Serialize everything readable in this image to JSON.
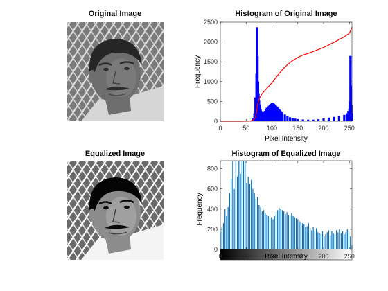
{
  "figure": {
    "panels": [
      {
        "title": "Original Image"
      },
      {
        "title": "Histogram of Original Image"
      },
      {
        "title": "Equalized Image"
      },
      {
        "title": "Histogram of Equalized Image"
      }
    ]
  },
  "chart_data": [
    {
      "type": "image",
      "title": "Original Image",
      "tone": "grayscale, low contrast (mid-gray dominated)"
    },
    {
      "type": "bar",
      "title": "Histogram of Original Image",
      "xlabel": "Pixel Intensity",
      "ylabel": "Frequency",
      "xlim": [
        0,
        255
      ],
      "ylim": [
        0,
        2500
      ],
      "xticks": [
        0,
        50,
        100,
        150,
        200,
        250
      ],
      "yticks": [
        0,
        500,
        1000,
        1500,
        2000,
        2500
      ],
      "grid": false,
      "colors": {
        "bars": "#0000ff",
        "cdf": "#ff0000"
      },
      "series": [
        {
          "kind": "histogram",
          "x": [
            50,
            55,
            60,
            62,
            64,
            66,
            68,
            70,
            71,
            72,
            73,
            74,
            75,
            76,
            77,
            78,
            79,
            80,
            82,
            84,
            86,
            88,
            90,
            92,
            94,
            96,
            98,
            100,
            102,
            104,
            106,
            108,
            110,
            112,
            114,
            116,
            118,
            120,
            125,
            130,
            135,
            140,
            145,
            150,
            160,
            170,
            180,
            190,
            200,
            210,
            220,
            230,
            240,
            245,
            248,
            250,
            251,
            252,
            253,
            254,
            255
          ],
          "values": [
            0,
            2,
            10,
            30,
            80,
            200,
            600,
            1200,
            2370,
            1650,
            1000,
            700,
            520,
            420,
            350,
            300,
            260,
            240,
            220,
            230,
            260,
            300,
            340,
            360,
            390,
            420,
            440,
            460,
            470,
            440,
            410,
            390,
            370,
            340,
            310,
            280,
            250,
            220,
            170,
            130,
            100,
            80,
            65,
            55,
            45,
            40,
            40,
            50,
            70,
            90,
            110,
            130,
            160,
            200,
            260,
            320,
            500,
            1650,
            900,
            400,
            200
          ]
        },
        {
          "kind": "cdf",
          "x": [
            0,
            40,
            55,
            60,
            65,
            68,
            70,
            72,
            75,
            80,
            85,
            90,
            95,
            100,
            110,
            120,
            130,
            140,
            150,
            160,
            170,
            180,
            200,
            220,
            240,
            250,
            255
          ],
          "values": [
            0,
            0,
            3,
            10,
            40,
            100,
            200,
            420,
            560,
            680,
            760,
            830,
            900,
            970,
            1140,
            1300,
            1430,
            1530,
            1610,
            1670,
            1710,
            1760,
            1860,
            1990,
            2130,
            2220,
            2370
          ]
        }
      ]
    },
    {
      "type": "image",
      "title": "Equalized Image",
      "tone": "grayscale, high contrast (histogram equalized)"
    },
    {
      "type": "bar",
      "title": "Histogram of Equalized Image",
      "xlabel": "Pixel Intensity",
      "ylabel": "Frequency",
      "xlim": [
        0,
        255
      ],
      "ylim": [
        0,
        880
      ],
      "xticks": [
        0,
        50,
        100,
        150,
        200,
        250
      ],
      "yticks": [
        0,
        200,
        400,
        600,
        800
      ],
      "colorbar": {
        "from": "#000000",
        "to": "#ffffff"
      },
      "grid": false,
      "colors": {
        "bars": "#0072bd"
      },
      "series": [
        {
          "kind": "histogram",
          "x": [
            0,
            3,
            6,
            9,
            12,
            15,
            18,
            21,
            24,
            27,
            30,
            33,
            36,
            39,
            42,
            45,
            48,
            51,
            54,
            57,
            60,
            63,
            66,
            69,
            72,
            75,
            78,
            81,
            84,
            87,
            90,
            93,
            96,
            99,
            102,
            105,
            108,
            111,
            114,
            117,
            120,
            123,
            126,
            129,
            132,
            135,
            138,
            141,
            144,
            147,
            150,
            153,
            156,
            159,
            162,
            165,
            168,
            171,
            174,
            177,
            180,
            183,
            186,
            189,
            192,
            195,
            198,
            201,
            204,
            207,
            210,
            213,
            216,
            219,
            222,
            225,
            228,
            231,
            234,
            237,
            240,
            243,
            246,
            249,
            252,
            255
          ],
          "values": [
            180,
            220,
            260,
            400,
            330,
            420,
            560,
            700,
            880,
            600,
            880,
            720,
            880,
            750,
            880,
            880,
            880,
            660,
            720,
            650,
            690,
            600,
            560,
            500,
            520,
            440,
            420,
            380,
            390,
            360,
            340,
            330,
            310,
            320,
            300,
            330,
            370,
            390,
            410,
            400,
            390,
            380,
            350,
            370,
            340,
            330,
            360,
            330,
            320,
            310,
            300,
            280,
            270,
            260,
            250,
            220,
            230,
            260,
            210,
            190,
            220,
            180,
            210,
            170,
            160,
            150,
            180,
            130,
            150,
            170,
            190,
            140,
            180,
            160,
            150,
            190,
            170,
            200,
            160,
            180,
            150,
            170,
            200,
            180,
            130,
            40
          ]
        }
      ]
    }
  ]
}
